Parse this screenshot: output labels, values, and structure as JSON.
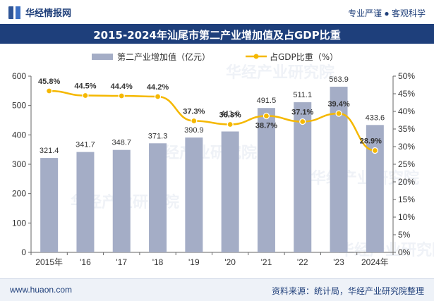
{
  "header": {
    "brand": "华经情报网",
    "slogan": "专业严谨 ● 客观科学",
    "title": "2015-2024年汕尾市第二产业增加值及占GDP比重"
  },
  "footer": {
    "website": "www.huaon.com",
    "source": "资料来源：统计局，华经产业研究院整理"
  },
  "watermark": "华经产业研究院",
  "colors": {
    "bar": "#a4adc6",
    "line": "#f5b800",
    "title_bg": "#1e3f7b"
  },
  "chart_data": {
    "type": "bar",
    "categories": [
      "2015年",
      "'16",
      "'17",
      "'18",
      "'19",
      "'20",
      "'21",
      "'22",
      "'23",
      "2024年"
    ],
    "series": [
      {
        "name": "第二产业增加值（亿元）",
        "type": "bar",
        "axis": "left",
        "values": [
          321.4,
          341.7,
          348.7,
          371.3,
          390.9,
          411.6,
          491.5,
          511.1,
          563.9,
          433.6
        ]
      },
      {
        "name": "占GDP比重（%）",
        "type": "line",
        "axis": "right",
        "values": [
          45.8,
          44.5,
          44.4,
          44.2,
          37.3,
          36.3,
          38.7,
          37.1,
          39.4,
          28.9
        ]
      }
    ],
    "y_left": {
      "min": 0,
      "max": 600,
      "ticks": [
        "0",
        "100",
        "200",
        "300",
        "400",
        "500",
        "600"
      ]
    },
    "y_right": {
      "min": 0,
      "max": 50,
      "ticks": [
        "0%",
        "5%",
        "10%",
        "15%",
        "20%",
        "25%",
        "30%",
        "35%",
        "40%",
        "45%",
        "50%"
      ]
    },
    "legend_position": "top-center",
    "grid": false
  }
}
